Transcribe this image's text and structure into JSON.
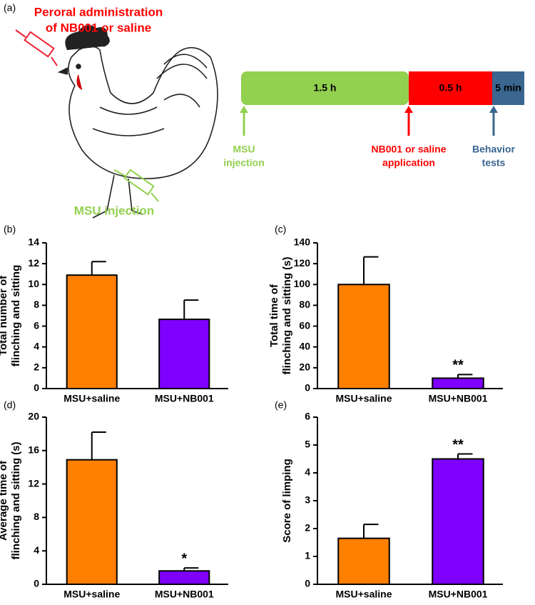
{
  "diagram": {
    "panel": "(a)",
    "title": [
      "Peroral administration",
      "of NB001 or saline"
    ],
    "syringe_label": "MSU injection",
    "timeline": [
      {
        "label": "1.5 h",
        "color": "#92d050"
      },
      {
        "label": "0.5 h",
        "color": "#ff0000"
      },
      {
        "label": "5 min",
        "color": "#3a6690"
      }
    ],
    "events": [
      {
        "lines": [
          "MSU",
          "injection"
        ],
        "color": "#92d050"
      },
      {
        "lines": [
          "NB001 or saline",
          "application"
        ],
        "color": "#ff0000"
      },
      {
        "lines": [
          "Behavior",
          "tests"
        ],
        "color": "#3a6690"
      }
    ]
  },
  "chart_data": [
    {
      "type": "bar",
      "panel": "(b)",
      "ylabel": [
        "Total number of",
        "flinching and sitting"
      ],
      "categories": [
        "MSU+saline",
        "MSU+NB001"
      ],
      "values": [
        10.9,
        6.65
      ],
      "errors": [
        1.3,
        1.85
      ],
      "colors": [
        "#ff7f00",
        "#8000ff"
      ],
      "significance": [
        null,
        null
      ],
      "ylim": [
        0,
        14
      ],
      "yticks": [
        0,
        2,
        4,
        6,
        8,
        10,
        12,
        14
      ]
    },
    {
      "type": "bar",
      "panel": "(c)",
      "ylabel": [
        "Total time of",
        "flinching and sitting (s)"
      ],
      "categories": [
        "MSU+saline",
        "MSU+NB001"
      ],
      "values": [
        100,
        10
      ],
      "errors": [
        26.5,
        3.5
      ],
      "colors": [
        "#ff7f00",
        "#8000ff"
      ],
      "significance": [
        null,
        "**"
      ],
      "ylim": [
        0,
        140
      ],
      "yticks": [
        0,
        20,
        40,
        60,
        80,
        100,
        120,
        140
      ]
    },
    {
      "type": "bar",
      "panel": "(d)",
      "ylabel": [
        "Average time of",
        "flinching and sitting (s)"
      ],
      "categories": [
        "MSU+saline",
        "MSU+NB001"
      ],
      "values": [
        14.9,
        1.6
      ],
      "errors": [
        3.3,
        0.35
      ],
      "colors": [
        "#ff7f00",
        "#8000ff"
      ],
      "significance": [
        null,
        "*"
      ],
      "ylim": [
        0,
        20
      ],
      "yticks": [
        0,
        4,
        8,
        12,
        16,
        20
      ]
    },
    {
      "type": "bar",
      "panel": "(e)",
      "ylabel": [
        "Score of limping"
      ],
      "categories": [
        "MSU+saline",
        "MSU+NB001"
      ],
      "values": [
        1.65,
        4.5
      ],
      "errors": [
        0.5,
        0.18
      ],
      "colors": [
        "#ff7f00",
        "#8000ff"
      ],
      "significance": [
        null,
        "**"
      ],
      "ylim": [
        0,
        6
      ],
      "yticks": [
        0,
        1,
        2,
        3,
        4,
        5,
        6
      ]
    }
  ]
}
